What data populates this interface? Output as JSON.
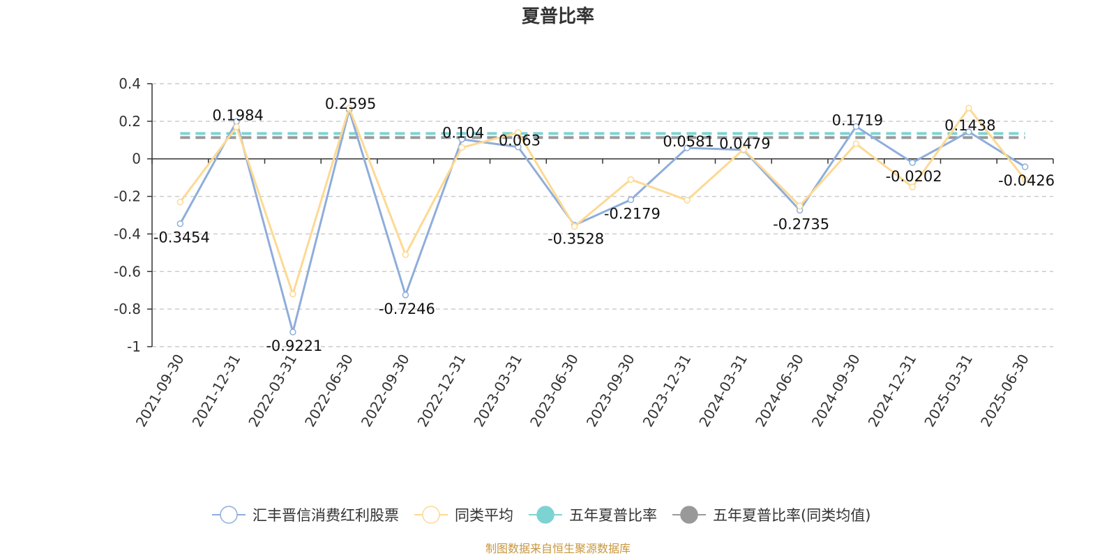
{
  "chart_data": {
    "type": "line",
    "title": "夏普比率",
    "categories": [
      "2021-09-30",
      "2021-12-31",
      "2022-03-31",
      "2022-06-30",
      "2022-09-30",
      "2022-12-31",
      "2023-03-31",
      "2023-06-30",
      "2023-09-30",
      "2023-12-31",
      "2024-03-31",
      "2024-06-30",
      "2024-09-30",
      "2024-12-31",
      "2025-03-31",
      "2025-06-30"
    ],
    "ylim": [
      -1,
      0.4
    ],
    "yticks": [
      0.4,
      0.2,
      0,
      -0.2,
      -0.4,
      -0.6,
      -0.8,
      -1
    ],
    "ytick_labels": [
      "0.4",
      "0.2",
      "0",
      "-0.2",
      "-0.4",
      "-0.6",
      "-0.8",
      "-1"
    ],
    "grid": "horizontal dashed",
    "legend_position": "bottom",
    "series": [
      {
        "name": "汇丰晋信消费红利股票",
        "color": "#8eaddb",
        "values": [
          -0.3454,
          0.1984,
          -0.9221,
          0.2595,
          -0.7246,
          0.104,
          0.063,
          -0.3528,
          -0.2179,
          0.0581,
          0.0479,
          -0.2735,
          0.1719,
          -0.0202,
          0.1438,
          -0.0426
        ],
        "labels": [
          "-0.3454",
          "0.1984",
          "-0.9221",
          "0.2595",
          "-0.7246",
          "0.104",
          "0.063",
          "-0.3528",
          "-0.2179",
          "0.0581",
          "0.0479",
          "-0.2735",
          "0.1719",
          "-0.0202",
          "0.1438",
          "-0.0426"
        ]
      },
      {
        "name": "同类平均",
        "color": "#fdd992",
        "values": [
          -0.23,
          0.17,
          -0.72,
          0.27,
          -0.51,
          0.06,
          0.14,
          -0.36,
          -0.11,
          -0.22,
          0.05,
          -0.25,
          0.08,
          -0.15,
          0.27,
          -0.11
        ]
      },
      {
        "name": "五年夏普比率",
        "color": "#7dd3d3",
        "value": 0.135,
        "style": "dashed"
      },
      {
        "name": "五年夏普比率(同类均值)",
        "color": "#999999",
        "value": 0.113,
        "style": "dashed"
      }
    ],
    "source": "制图数据来自恒生聚源数据库"
  }
}
